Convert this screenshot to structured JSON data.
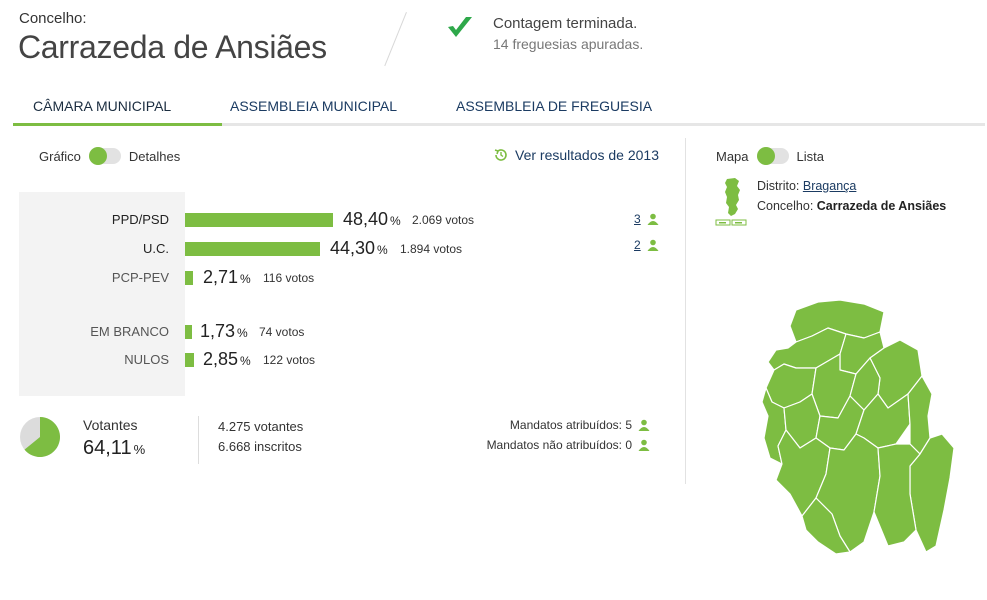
{
  "header": {
    "label": "Concelho:",
    "title": "Carrazeda de Ansiães",
    "status_main": "Contagem terminada.",
    "status_sub": "14 freguesias apuradas."
  },
  "tabs": [
    {
      "label": "CÂMARA MUNICIPAL",
      "active": true
    },
    {
      "label": "ASSEMBLEIA MUNICIPAL",
      "active": false
    },
    {
      "label": "ASSEMBLEIA DE FREGUESIA",
      "active": false
    }
  ],
  "view_toggle": {
    "left": "Gráfico",
    "right": "Detalhes"
  },
  "prev_results": "Ver resultados de 2013",
  "results": [
    {
      "party": "PPD/PSD",
      "pct": "48,40",
      "votes": "2.069 votos",
      "seats": "3",
      "share": 48.4
    },
    {
      "party": "U.C.",
      "pct": "44,30",
      "votes": "1.894 votos",
      "seats": "2",
      "share": 44.3
    },
    {
      "party": "PCP-PEV",
      "pct": "2,71",
      "votes": "116 votos",
      "seats": "",
      "share": 2.71
    },
    {
      "party": "EM BRANCO",
      "pct": "1,73",
      "votes": "74 votos",
      "seats": "",
      "share": 1.73
    },
    {
      "party": "NULOS",
      "pct": "2,85",
      "votes": "122 votos",
      "seats": "",
      "share": 2.85
    }
  ],
  "pct_symbol": "%",
  "turnout": {
    "label": "Votantes",
    "pct": "64,11",
    "share": 64.11,
    "voters": "4.275 votantes",
    "registered": "6.668 inscritos",
    "seats_assigned": "Mandatos atribuídos: 5",
    "seats_unassigned": "Mandatos não atribuídos: 0"
  },
  "side": {
    "toggle_left": "Mapa",
    "toggle_right": "Lista",
    "district_label": "Distrito:",
    "district_value": "Bragança",
    "municipality_label": "Concelho:",
    "municipality_value": "Carrazeda de Ansiães"
  },
  "colors": {
    "accent": "#7dbd42",
    "link": "#1b3b62",
    "map_fill": "#7dbd42"
  }
}
